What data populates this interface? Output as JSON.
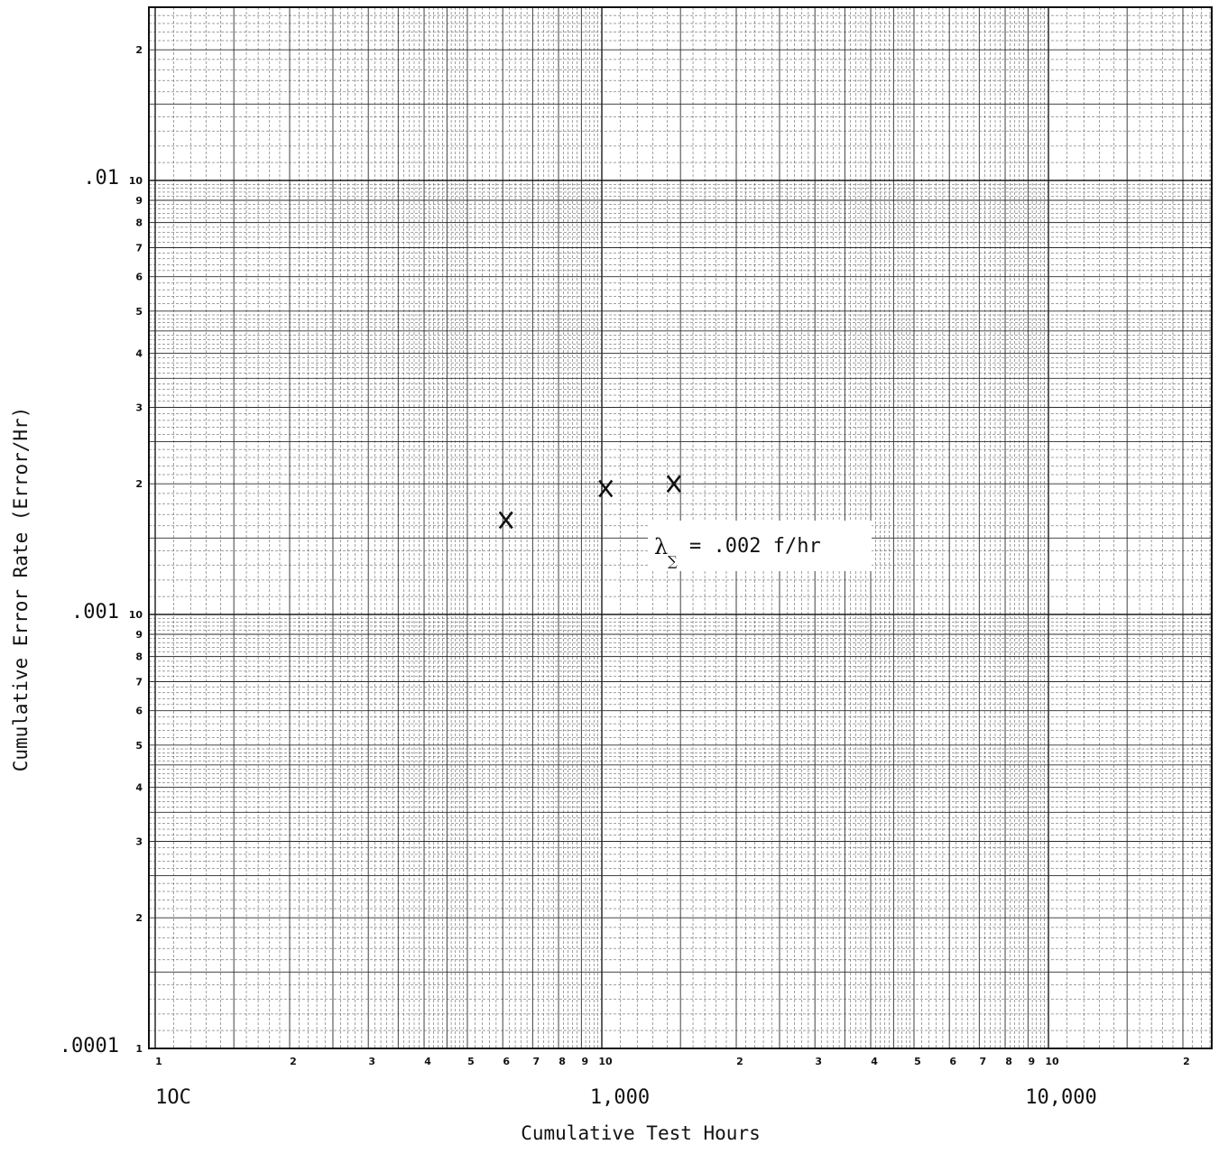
{
  "chart_data": {
    "type": "scatter",
    "title": "",
    "xlabel": "Cumulative Test Hours",
    "ylabel": "Cumulative Error Rate (Error/Hr)",
    "xscale": "log",
    "yscale": "log",
    "xlim": [
      100,
      25000
    ],
    "ylim": [
      0.0001,
      0.025
    ],
    "grid": true,
    "x_decade_labels": [
      {
        "value": 100,
        "label": "1OC"
      },
      {
        "value": 1000,
        "label": "1,000"
      },
      {
        "value": 10000,
        "label": "10,000"
      }
    ],
    "y_decade_labels": [
      {
        "value": 0.0001,
        "label": ".0001"
      },
      {
        "value": 0.001,
        "label": ".001"
      },
      {
        "value": 0.01,
        "label": ".01"
      }
    ],
    "x_cycle_ticks": [
      "1",
      "2",
      "3",
      "4",
      "5",
      "6",
      "7",
      "8",
      "9",
      "10",
      "2",
      "3",
      "4",
      "5",
      "6",
      "7",
      "8",
      "9",
      "10",
      "2"
    ],
    "y_cycle_ticks": [
      "1",
      "2",
      "3",
      "4",
      "5",
      "6",
      "7",
      "8",
      "9",
      "10",
      "2",
      "3",
      "4",
      "5",
      "6",
      "7",
      "8",
      "9",
      "10",
      "2"
    ],
    "points": [
      {
        "x": 610,
        "y": 0.00165,
        "marker": "x"
      },
      {
        "x": 1020,
        "y": 0.00195,
        "marker": "x"
      },
      {
        "x": 1450,
        "y": 0.002,
        "marker": "x"
      }
    ],
    "annotation": {
      "symbol": "λ",
      "subscript": "∑",
      "text": "= .002 f/hr"
    },
    "colors": {
      "ink": "#111111",
      "paper": "#ffffff"
    }
  }
}
